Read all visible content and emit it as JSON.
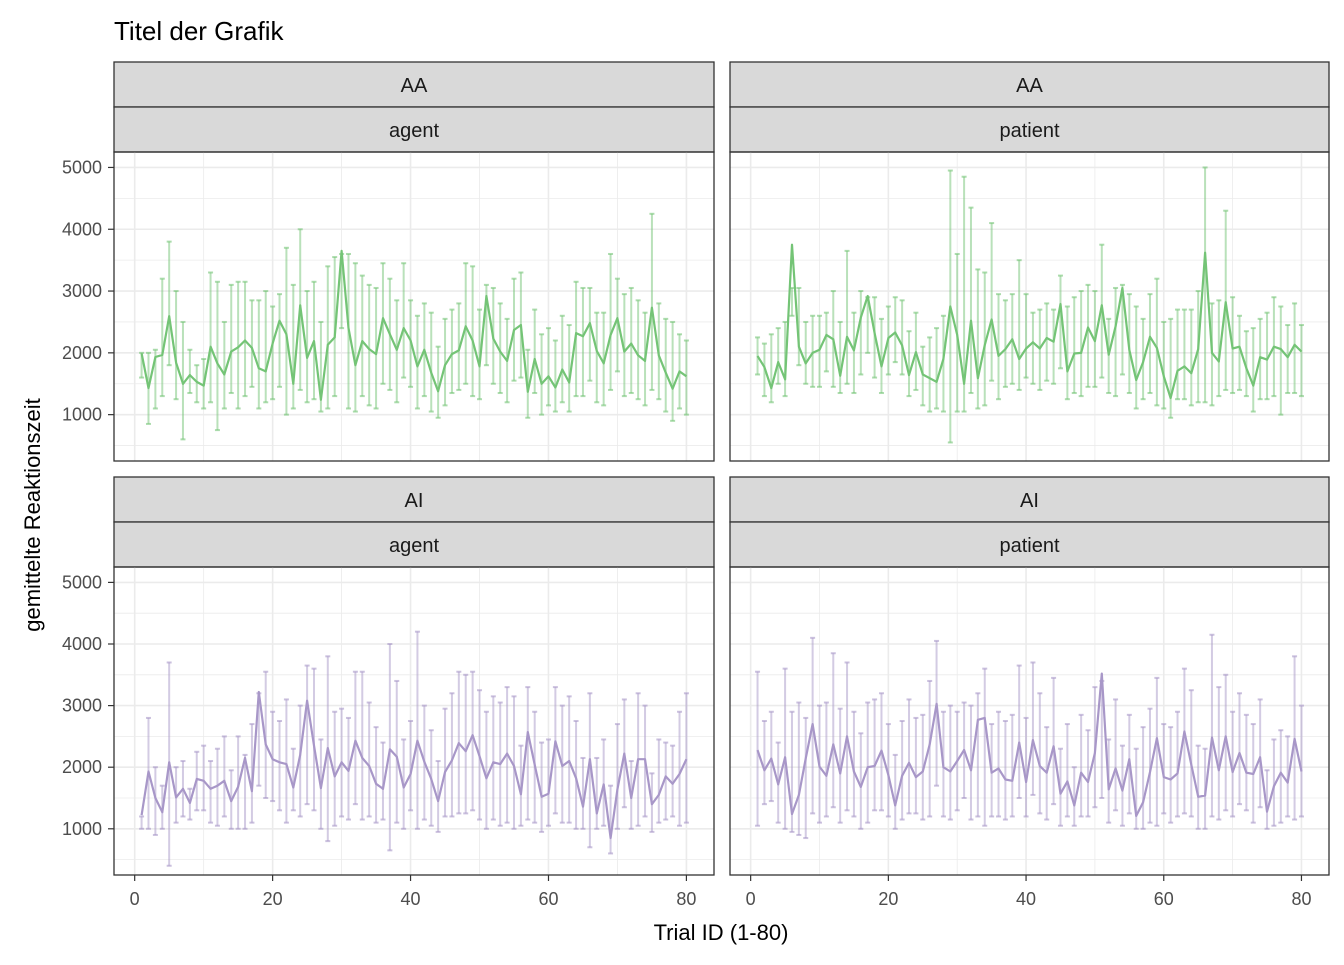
{
  "chart_data": {
    "type": "line",
    "title": "Titel der Grafik",
    "xlabel": "Trial ID (1-80)",
    "ylabel": "gemittelte Reaktionszeit",
    "xlim": [
      -3,
      84
    ],
    "ylim": [
      250,
      5250
    ],
    "x_ticks": [
      0,
      20,
      40,
      60,
      80
    ],
    "y_ticks": [
      1000,
      2000,
      3000,
      4000,
      5000
    ],
    "grid": true,
    "legend": "none",
    "colors": {
      "AA": "#74c476",
      "AI": "#a897c8"
    },
    "panels": [
      {
        "strip1": "AA",
        "strip2": "agent",
        "group": "AA",
        "mean": [
          1993,
          1430,
          1933,
          1967,
          2593,
          1840,
          1500,
          1640,
          1530,
          1470,
          2100,
          1830,
          1650,
          2020,
          2090,
          2200,
          2080,
          1750,
          1700,
          2150,
          2520,
          2300,
          1500,
          2770,
          1920,
          2190,
          1240,
          2130,
          2250,
          3650,
          2400,
          1800,
          2190,
          2060,
          1980,
          2560,
          2300,
          2050,
          2400,
          2200,
          1780,
          2050,
          1680,
          1380,
          1800,
          1980,
          2040,
          2430,
          2200,
          1780,
          2920,
          2230,
          2020,
          1870,
          2370,
          2450,
          1370,
          1900,
          1500,
          1620,
          1440,
          1730,
          1520,
          2320,
          2270,
          2480,
          2030,
          1830,
          2290,
          2560,
          2020,
          2150,
          1960,
          1870,
          2730,
          1960,
          1680,
          1420,
          1700,
          1620
        ],
        "lower": [
          1600,
          850,
          1100,
          1300,
          1800,
          1250,
          600,
          1350,
          1200,
          1100,
          1200,
          750,
          1100,
          1350,
          1100,
          1300,
          1450,
          1100,
          1200,
          1250,
          1450,
          1000,
          1100,
          1400,
          1200,
          1250,
          1050,
          1100,
          1300,
          2400,
          1100,
          1050,
          1300,
          1150,
          1100,
          1500,
          1400,
          1200,
          1600,
          1450,
          1100,
          1300,
          1050,
          950,
          1150,
          1350,
          1400,
          1500,
          1300,
          1250,
          1800,
          1500,
          1350,
          1200,
          1550,
          1600,
          950,
          1350,
          1000,
          1150,
          1050,
          1200,
          1050,
          1300,
          1300,
          1550,
          1200,
          1150,
          1400,
          1700,
          1300,
          1350,
          1250,
          1150,
          1400,
          1250,
          1050,
          900,
          1100,
          1000
        ],
        "upper": [
          2000,
          2000,
          2050,
          3200,
          3800,
          3000,
          2500,
          2050,
          1800,
          1900,
          3300,
          3150,
          2500,
          3100,
          3150,
          3150,
          2850,
          2850,
          3000,
          2750,
          2950,
          3700,
          3100,
          4000,
          3000,
          3150,
          2500,
          3400,
          3550,
          3600,
          3600,
          3450,
          3250,
          3100,
          3050,
          3450,
          3200,
          2850,
          3450,
          2850,
          2600,
          2800,
          2650,
          2100,
          2550,
          2700,
          2800,
          3450,
          3400,
          2700,
          3100,
          3050,
          2800,
          2550,
          3200,
          3300,
          2050,
          2700,
          2300,
          2400,
          2200,
          2600,
          2450,
          3150,
          3050,
          3050,
          2650,
          2650,
          3600,
          3200,
          2950,
          3050,
          2850,
          2650,
          4250,
          2800,
          2550,
          2500,
          2300,
          2200
        ]
      },
      {
        "strip1": "AA",
        "strip2": "patient",
        "group": "AA",
        "mean": [
          1950,
          1770,
          1430,
          1850,
          1570,
          3750,
          2100,
          1830,
          2000,
          2050,
          2290,
          2220,
          1630,
          2260,
          2040,
          2570,
          2920,
          2320,
          1780,
          2240,
          2330,
          2120,
          1640,
          2010,
          1650,
          1590,
          1530,
          1900,
          2750,
          2290,
          1500,
          2520,
          1590,
          2120,
          2540,
          1950,
          2060,
          2220,
          1900,
          2070,
          2170,
          2070,
          2240,
          2180,
          2790,
          1700,
          1990,
          2000,
          2410,
          2190,
          2770,
          1970,
          2430,
          3050,
          2050,
          1560,
          1850,
          2260,
          2080,
          1620,
          1270,
          1710,
          1780,
          1670,
          2060,
          3620,
          2000,
          1860,
          2820,
          2070,
          2100,
          1750,
          1470,
          1930,
          1890,
          2100,
          2060,
          1930,
          2130,
          2020
        ],
        "lower": [
          1650,
          1300,
          1200,
          1500,
          1300,
          2600,
          1800,
          1500,
          1450,
          1450,
          1700,
          1450,
          1350,
          1500,
          1350,
          1650,
          2000,
          1600,
          1350,
          1650,
          1850,
          1650,
          1300,
          1400,
          1150,
          1050,
          1100,
          1050,
          550,
          1050,
          1050,
          1350,
          1100,
          1150,
          1550,
          1250,
          1450,
          1500,
          1400,
          1600,
          1500,
          1400,
          1550,
          1500,
          1750,
          1250,
          1350,
          1300,
          1450,
          1450,
          1600,
          1350,
          1300,
          1650,
          1350,
          1100,
          1250,
          1350,
          1150,
          1100,
          950,
          1250,
          1250,
          1150,
          1200,
          1200,
          1150,
          1300,
          1400,
          1350,
          1400,
          1300,
          1050,
          1250,
          1250,
          1300,
          1000,
          1350,
          1350,
          1300
        ],
        "upper": [
          2250,
          2150,
          2300,
          2400,
          2500,
          3050,
          3050,
          2500,
          2600,
          2600,
          2650,
          3000,
          2500,
          3650,
          2650,
          3000,
          2900,
          2900,
          2550,
          2750,
          2900,
          2850,
          2350,
          2650,
          2100,
          2250,
          2400,
          2600,
          4950,
          3600,
          4850,
          4350,
          3350,
          3300,
          4100,
          2950,
          2850,
          2950,
          3500,
          2950,
          2650,
          2700,
          2800,
          2700,
          3250,
          2750,
          2900,
          3000,
          3100,
          3000,
          3750,
          2550,
          3050,
          3100,
          2950,
          2750,
          2550,
          2950,
          3200,
          2500,
          2550,
          2700,
          2700,
          2700,
          3000,
          5000,
          2800,
          2850,
          4300,
          2900,
          2600,
          2350,
          2400,
          2550,
          2650,
          2900,
          2750,
          2450,
          2800,
          2450
        ]
      },
      {
        "strip1": "AI",
        "strip2": "agent",
        "group": "AI",
        "mean": [
          1220,
          1930,
          1500,
          1270,
          2080,
          1510,
          1650,
          1420,
          1810,
          1780,
          1650,
          1700,
          1780,
          1450,
          1680,
          2150,
          1610,
          3220,
          2370,
          2130,
          2080,
          2050,
          1670,
          2200,
          3080,
          2350,
          1660,
          2310,
          1850,
          2080,
          1940,
          2430,
          2150,
          2020,
          1730,
          1650,
          2290,
          2170,
          1670,
          1890,
          2430,
          2090,
          1810,
          1450,
          1920,
          2110,
          2390,
          2260,
          2520,
          2180,
          1820,
          2080,
          2050,
          2220,
          2020,
          1560,
          2570,
          2040,
          1520,
          1570,
          2420,
          2020,
          2100,
          1820,
          1360,
          2130,
          1250,
          1720,
          850,
          1640,
          2220,
          1500,
          2130,
          2130,
          1400,
          1550,
          1850,
          1730,
          1890,
          2130
        ],
        "lower": [
          1000,
          1000,
          900,
          1000,
          400,
          1100,
          1200,
          1150,
          1300,
          1300,
          1100,
          1050,
          1200,
          1000,
          1000,
          1000,
          1100,
          1700,
          1500,
          1450,
          1300,
          1100,
          1300,
          1200,
          1400,
          1300,
          1000,
          800,
          1050,
          1200,
          1150,
          1400,
          1150,
          1200,
          1100,
          1150,
          650,
          1100,
          1000,
          1300,
          1000,
          1150,
          1050,
          950,
          1200,
          1200,
          1250,
          1250,
          1300,
          1150,
          1000,
          1150,
          1050,
          1100,
          1000,
          1050,
          1150,
          1100,
          950,
          1050,
          1250,
          1100,
          1100,
          1000,
          1000,
          700,
          1000,
          1050,
          600,
          1000,
          1350,
          1000,
          1050,
          1200,
          950,
          1100,
          1150,
          1200,
          1050,
          1100
        ],
        "upper": [
          1200,
          2800,
          2000,
          1700,
          3700,
          2000,
          2100,
          1650,
          2250,
          2350,
          2100,
          2300,
          2500,
          1950,
          2500,
          2200,
          2700,
          3200,
          3550,
          2900,
          2750,
          3100,
          2300,
          3000,
          3650,
          3600,
          2450,
          3800,
          2900,
          2950,
          2800,
          3550,
          3550,
          3050,
          2650,
          2400,
          4000,
          3400,
          2450,
          2750,
          4200,
          3000,
          2600,
          2100,
          2950,
          3200,
          3550,
          3500,
          3550,
          3250,
          2900,
          3150,
          3050,
          3300,
          3150,
          2350,
          3300,
          2900,
          2400,
          2450,
          3300,
          3000,
          3150,
          2750,
          2150,
          3200,
          2150,
          2450,
          1700,
          2700,
          3100,
          2100,
          3200,
          3000,
          1900,
          2450,
          2400,
          2350,
          2900,
          3200
        ]
      },
      {
        "strip1": "AI",
        "strip2": "patient",
        "group": "AI",
        "mean": [
          2280,
          1950,
          2140,
          1720,
          2160,
          1240,
          1550,
          2140,
          2700,
          2010,
          1860,
          2370,
          1900,
          2500,
          1930,
          1680,
          2000,
          2020,
          2270,
          1870,
          1380,
          1860,
          2070,
          1840,
          1930,
          2370,
          3030,
          2000,
          1930,
          2100,
          2280,
          1950,
          2770,
          2800,
          1910,
          1980,
          1800,
          1780,
          2400,
          1760,
          2440,
          2020,
          1910,
          2340,
          1570,
          1770,
          1380,
          1910,
          1760,
          2230,
          3520,
          1640,
          1980,
          1620,
          2130,
          1210,
          1430,
          1920,
          2470,
          1840,
          1800,
          1900,
          2580,
          2040,
          1520,
          1540,
          2480,
          1950,
          2500,
          1920,
          2230,
          1910,
          1890,
          2160,
          1280,
          1690,
          1910,
          1750,
          2460,
          1930
        ],
        "lower": [
          1050,
          1400,
          1450,
          1100,
          1000,
          950,
          900,
          850,
          1250,
          1100,
          1200,
          1350,
          1100,
          1300,
          1200,
          1000,
          1100,
          1300,
          1300,
          1200,
          1000,
          1150,
          1250,
          1250,
          1150,
          1200,
          1700,
          1200,
          1150,
          1300,
          1500,
          1150,
          1200,
          1050,
          1200,
          1200,
          1150,
          1200,
          1500,
          1200,
          1550,
          1250,
          1150,
          1400,
          1050,
          1200,
          1050,
          1200,
          1200,
          1350,
          1500,
          1100,
          1300,
          1050,
          1250,
          1000,
          1000,
          1100,
          1050,
          1250,
          1100,
          1200,
          1250,
          1200,
          1000,
          1000,
          1200,
          1150,
          1300,
          1200,
          1400,
          1300,
          1100,
          1350,
          1000,
          1050,
          1100,
          1200,
          1150,
          1200
        ],
        "upper": [
          3550,
          2750,
          2900,
          2400,
          3600,
          2900,
          3050,
          2800,
          4100,
          3000,
          3050,
          3850,
          2950,
          3700,
          2900,
          2550,
          3050,
          3100,
          3200,
          2700,
          2200,
          2750,
          3100,
          2800,
          2850,
          3400,
          4050,
          2900,
          3000,
          2900,
          3050,
          3000,
          3200,
          3600,
          2700,
          2900,
          2750,
          2850,
          3650,
          2800,
          3700,
          3200,
          2650,
          3450,
          2300,
          2700,
          2000,
          2850,
          2600,
          3300,
          3400,
          2450,
          3100,
          2350,
          2850,
          2300,
          2650,
          2950,
          3450,
          2700,
          2650,
          2900,
          3600,
          3250,
          2350,
          2300,
          4150,
          3300,
          3500,
          2900,
          3200,
          2850,
          2700,
          3100,
          1950,
          2450,
          2600,
          2500,
          3800,
          3000
        ]
      }
    ]
  }
}
